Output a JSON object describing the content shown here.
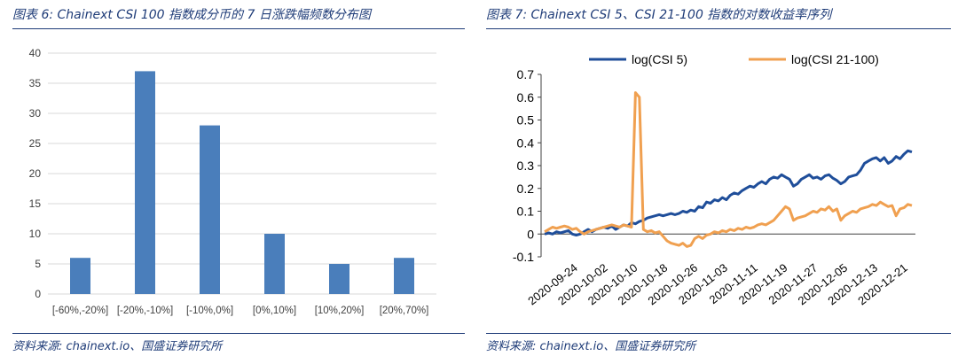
{
  "left_panel": {
    "title": "图表 6: Chainext CSI 100 指数成分币的 7 日涨跌幅频数分布图",
    "source": "资料来源: chainext.io、国盛证券研究所"
  },
  "right_panel": {
    "title": "图表 7: Chainext CSI 5、CSI 21-100 指数的对数收益率序列",
    "source": "资料来源: chainext.io、国盛证券研究所"
  },
  "colors": {
    "title_blue": "#1f3c78",
    "bar_blue": "#4a7ebb",
    "line_csi5": "#1f4e9a",
    "line_csi21_100": "#f0a050",
    "grid": "#d9d9d9"
  },
  "chart_data": [
    {
      "type": "bar",
      "categories": [
        "[-60%,-20%]",
        "[-20%,-10%]",
        "[-10%,0%]",
        "[0%,10%]",
        "[10%,20%]",
        "[20%,70%]"
      ],
      "values": [
        6,
        37,
        28,
        10,
        5,
        6
      ],
      "ylim": [
        0,
        40
      ],
      "yticks": [
        0,
        5,
        10,
        15,
        20,
        25,
        30,
        35,
        40
      ],
      "grid": true
    },
    {
      "type": "line",
      "x_tick_labels": [
        "2020-09-24",
        "2020-10-02",
        "2020-10-10",
        "2020-10-18",
        "2020-10-26",
        "2020-11-03",
        "2020-11-11",
        "2020-11-19",
        "2020-11-27",
        "2020-12-05",
        "2020-12-13",
        "2020-12-21"
      ],
      "ylim": [
        -0.1,
        0.7
      ],
      "yticks": [
        "-0.1",
        "0",
        "0.1",
        "0.2",
        "0.3",
        "0.4",
        "0.5",
        "0.6",
        "0.7"
      ],
      "legend_position": "top",
      "series": [
        {
          "name": "log(CSI 5)",
          "values": [
            0.0,
            0.005,
            0.0,
            0.01,
            0.005,
            0.01,
            0.015,
            0.0,
            -0.005,
            0.0,
            0.01,
            0.02,
            0.01,
            0.02,
            0.025,
            0.03,
            0.025,
            0.035,
            0.02,
            0.03,
            0.04,
            0.035,
            0.05,
            0.045,
            0.055,
            0.06,
            0.07,
            0.075,
            0.08,
            0.085,
            0.08,
            0.085,
            0.09,
            0.085,
            0.09,
            0.1,
            0.095,
            0.105,
            0.1,
            0.12,
            0.115,
            0.14,
            0.135,
            0.15,
            0.145,
            0.16,
            0.15,
            0.17,
            0.18,
            0.175,
            0.19,
            0.2,
            0.21,
            0.205,
            0.22,
            0.23,
            0.22,
            0.24,
            0.25,
            0.245,
            0.26,
            0.25,
            0.24,
            0.21,
            0.22,
            0.24,
            0.25,
            0.26,
            0.245,
            0.25,
            0.24,
            0.255,
            0.26,
            0.245,
            0.235,
            0.22,
            0.23,
            0.25,
            0.255,
            0.26,
            0.28,
            0.31,
            0.32,
            0.33,
            0.335,
            0.32,
            0.335,
            0.31,
            0.32,
            0.34,
            0.33,
            0.35,
            0.365,
            0.36
          ]
        },
        {
          "name": "log(CSI 21-100)",
          "values": [
            0.01,
            0.02,
            0.03,
            0.025,
            0.03,
            0.035,
            0.03,
            0.02,
            0.025,
            0.01,
            0.0,
            0.01,
            0.015,
            0.02,
            0.025,
            0.03,
            0.035,
            0.04,
            0.035,
            0.03,
            0.04,
            0.035,
            0.03,
            0.62,
            0.6,
            0.02,
            0.01,
            0.015,
            0.005,
            0.01,
            -0.01,
            -0.03,
            -0.04,
            -0.045,
            -0.05,
            -0.04,
            -0.055,
            -0.05,
            -0.02,
            -0.01,
            -0.02,
            -0.005,
            0.0,
            0.01,
            0.005,
            0.015,
            0.01,
            0.02,
            0.015,
            0.025,
            0.02,
            0.03,
            0.025,
            0.03,
            0.04,
            0.045,
            0.04,
            0.05,
            0.06,
            0.08,
            0.1,
            0.12,
            0.11,
            0.06,
            0.07,
            0.075,
            0.08,
            0.09,
            0.1,
            0.095,
            0.11,
            0.105,
            0.12,
            0.1,
            0.11,
            0.06,
            0.08,
            0.09,
            0.1,
            0.095,
            0.11,
            0.115,
            0.12,
            0.13,
            0.125,
            0.14,
            0.13,
            0.12,
            0.125,
            0.08,
            0.11,
            0.115,
            0.13,
            0.125
          ]
        }
      ]
    }
  ]
}
